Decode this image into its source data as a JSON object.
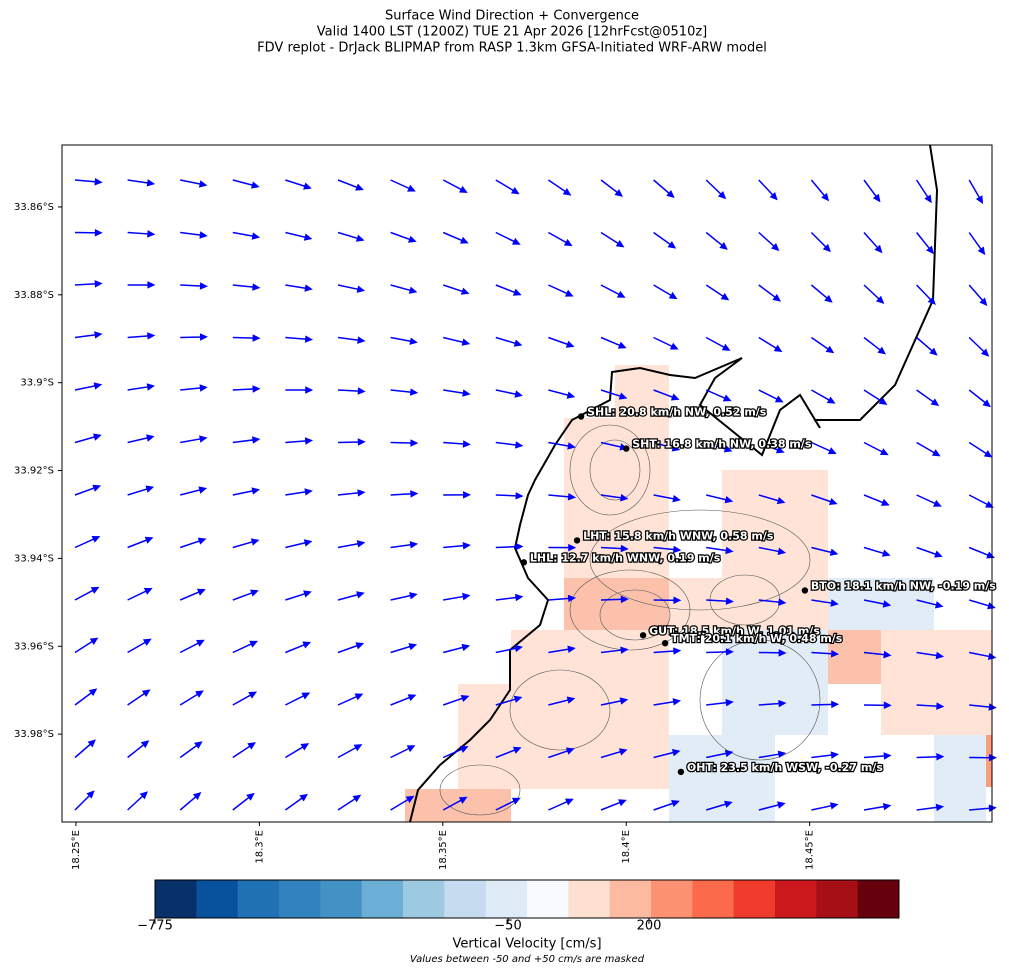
{
  "title": [
    "Surface Wind Direction + Convergence",
    "Valid 1400 LST (1200Z) TUE 21 Apr 2026 [12hrFcst@0510z]",
    "FDV replot - DrJack BLIPMAP from RASP 1.3km GFSA-Initiated WRF-ARW model"
  ],
  "map": {
    "xlim": [
      18.2462,
      18.4997
    ],
    "ylim": [
      -34.0,
      -33.8459
    ],
    "xticks": [
      {
        "value": 18.25,
        "label": "18.25°E"
      },
      {
        "value": 18.3,
        "label": "18.3°E"
      },
      {
        "value": 18.35,
        "label": "18.35°E"
      },
      {
        "value": 18.4,
        "label": "18.4°E"
      },
      {
        "value": 18.45,
        "label": "18.45°E"
      }
    ],
    "yticks": [
      {
        "value": -33.86,
        "label": "33.86°S"
      },
      {
        "value": -33.88,
        "label": "33.88°S"
      },
      {
        "value": -33.9,
        "label": "33.9°S"
      },
      {
        "value": -33.92,
        "label": "33.92°S"
      },
      {
        "value": -33.94,
        "label": "33.94°S"
      },
      {
        "value": -33.96,
        "label": "33.96°S"
      },
      {
        "value": -33.98,
        "label": "33.98°S"
      }
    ],
    "arrow_color": "#0000ff",
    "stations": [
      {
        "label": "SHL: 20.8 km/h NW, 0.52 m/s",
        "lon": 18.3877,
        "lat": -33.9077
      },
      {
        "label": "SHT: 16.8 km/h NW, 0.38 m/s",
        "lon": 18.4,
        "lat": -33.915
      },
      {
        "label": "LHT: 15.8 km/h WNW, 0.58 m/s",
        "lon": 18.3866,
        "lat": -33.9359
      },
      {
        "label": "LHL: 12.7 km/h WNW, 0.19 m/s",
        "lon": 18.3721,
        "lat": -33.9409
      },
      {
        "label": "BTO: 18.1 km/h NW, -0.19 m/s",
        "lon": 18.4487,
        "lat": -33.9473
      },
      {
        "label": "GUT: 18.5 km/h W, 1.01 m/s",
        "lon": 18.4046,
        "lat": -33.9575
      },
      {
        "label": "TMT: 20.1 km/h W, 0.48 m/s",
        "lon": 18.4106,
        "lat": -33.9593
      },
      {
        "label": "OHT: 23.5 km/h WSW, -0.27 m/s",
        "lon": 18.4149,
        "lat": -33.9886
      }
    ]
  },
  "colorbar": {
    "label": "Vertical Velocity [cm/s]",
    "note": "Values between -50 and +50 cm/s are masked",
    "colors": [
      "#08306b",
      "#08519c",
      "#2171b5",
      "#3182bd",
      "#4292c6",
      "#6baed6",
      "#9ecae1",
      "#c6dbef",
      "#deebf7",
      "#f7fbff",
      "#fee0d2",
      "#fcbba1",
      "#fc9272",
      "#fb6a4a",
      "#ef3b2c",
      "#cb181d",
      "#a50f15",
      "#67000d"
    ],
    "ticks": [
      {
        "value": -775,
        "label": "−775"
      },
      {
        "value": -50,
        "label": "−50"
      },
      {
        "value": 200,
        "label": "200"
      }
    ]
  }
}
